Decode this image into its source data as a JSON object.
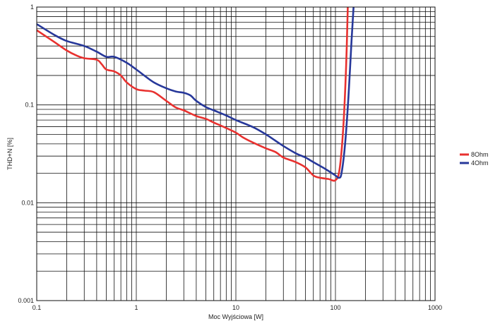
{
  "chart_data": {
    "type": "line",
    "title": "",
    "xlabel": "Moc Wyjściowa [W]",
    "ylabel": "THD+N [%]",
    "x_scale": "log",
    "y_scale": "log",
    "xlim": [
      0.1,
      1000
    ],
    "ylim": [
      0.001,
      1
    ],
    "grid": true,
    "legend_position": "right",
    "x_ticks": [
      {
        "value": 0.1,
        "label": "0.1"
      },
      {
        "value": 1,
        "label": "1"
      },
      {
        "value": 10,
        "label": "10"
      },
      {
        "value": 100,
        "label": "100"
      },
      {
        "value": 1000,
        "label": "1000"
      }
    ],
    "y_ticks": [
      {
        "value": 1,
        "label": "1"
      },
      {
        "value": 0.1,
        "label": "0.1"
      },
      {
        "value": 0.01,
        "label": "0.01"
      },
      {
        "value": 0.001,
        "label": "0.001"
      }
    ],
    "series": [
      {
        "name": "8Ohm",
        "color": "#e8312f",
        "points": [
          [
            0.1,
            0.58
          ],
          [
            0.15,
            0.44
          ],
          [
            0.2,
            0.36
          ],
          [
            0.25,
            0.32
          ],
          [
            0.3,
            0.3
          ],
          [
            0.4,
            0.29
          ],
          [
            0.45,
            0.26
          ],
          [
            0.5,
            0.23
          ],
          [
            0.6,
            0.22
          ],
          [
            0.7,
            0.2
          ],
          [
            0.8,
            0.17
          ],
          [
            1.0,
            0.145
          ],
          [
            1.2,
            0.14
          ],
          [
            1.5,
            0.135
          ],
          [
            2.0,
            0.11
          ],
          [
            2.5,
            0.094
          ],
          [
            3.0,
            0.088
          ],
          [
            4.0,
            0.077
          ],
          [
            5.0,
            0.072
          ],
          [
            6.0,
            0.066
          ],
          [
            8.0,
            0.058
          ],
          [
            10.0,
            0.052
          ],
          [
            12.0,
            0.046
          ],
          [
            15.0,
            0.041
          ],
          [
            20.0,
            0.036
          ],
          [
            25.0,
            0.033
          ],
          [
            30.0,
            0.029
          ],
          [
            40.0,
            0.026
          ],
          [
            50.0,
            0.023
          ],
          [
            60.0,
            0.019
          ],
          [
            70.0,
            0.018
          ],
          [
            85.0,
            0.0175
          ],
          [
            100.0,
            0.017
          ],
          [
            110.0,
            0.022
          ],
          [
            120.0,
            0.06
          ],
          [
            128.0,
            0.25
          ],
          [
            133.0,
            1.0
          ]
        ]
      },
      {
        "name": "4Ohm",
        "color": "#27389a",
        "points": [
          [
            0.1,
            0.67
          ],
          [
            0.15,
            0.52
          ],
          [
            0.2,
            0.45
          ],
          [
            0.3,
            0.4
          ],
          [
            0.4,
            0.35
          ],
          [
            0.5,
            0.31
          ],
          [
            0.6,
            0.31
          ],
          [
            0.8,
            0.27
          ],
          [
            1.0,
            0.23
          ],
          [
            1.2,
            0.2
          ],
          [
            1.5,
            0.17
          ],
          [
            2.0,
            0.148
          ],
          [
            2.5,
            0.137
          ],
          [
            3.0,
            0.133
          ],
          [
            3.5,
            0.125
          ],
          [
            4.0,
            0.11
          ],
          [
            5.0,
            0.095
          ],
          [
            6.0,
            0.088
          ],
          [
            8.0,
            0.078
          ],
          [
            10.0,
            0.07
          ],
          [
            15.0,
            0.059
          ],
          [
            20.0,
            0.05
          ],
          [
            25.0,
            0.043
          ],
          [
            30.0,
            0.038
          ],
          [
            40.0,
            0.032
          ],
          [
            50.0,
            0.029
          ],
          [
            60.0,
            0.026
          ],
          [
            80.0,
            0.022
          ],
          [
            100.0,
            0.019
          ],
          [
            108.0,
            0.018
          ],
          [
            115.0,
            0.02
          ],
          [
            125.0,
            0.04
          ],
          [
            135.0,
            0.12
          ],
          [
            145.0,
            0.45
          ],
          [
            152.0,
            1.0
          ]
        ]
      }
    ]
  }
}
